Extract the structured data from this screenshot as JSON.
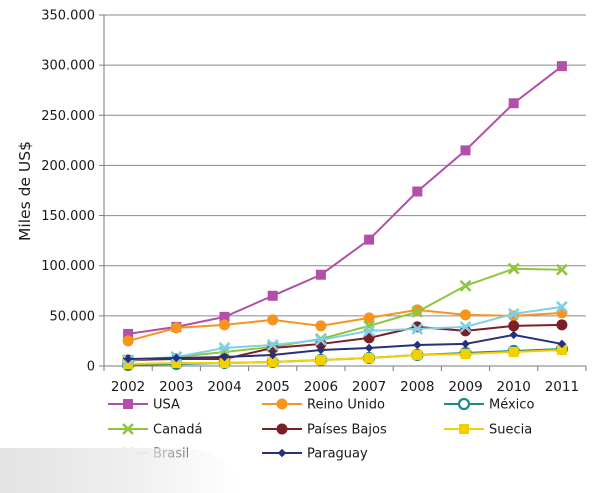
{
  "chart_data": {
    "type": "line",
    "title": "",
    "xlabel": "",
    "ylabel": "Miles de US$",
    "categories": [
      "2002",
      "2003",
      "2004",
      "2005",
      "2006",
      "2007",
      "2008",
      "2009",
      "2010",
      "2011"
    ],
    "y_ticks": [
      "0",
      "50.000",
      "100.000",
      "150.000",
      "200.000",
      "250.000",
      "300.000",
      "350.000"
    ],
    "ylim": [
      0,
      350000
    ],
    "grid": true,
    "legend_position": "bottom",
    "series": [
      {
        "name": "USA",
        "color": "#b34fa8",
        "marker": "square",
        "values": [
          32000,
          39000,
          49000,
          70000,
          91000,
          126000,
          174000,
          215000,
          262000,
          299000
        ]
      },
      {
        "name": "Reino Unido",
        "color": "#f7941d",
        "marker": "circle",
        "values": [
          25000,
          38000,
          41000,
          46000,
          40000,
          48000,
          56000,
          51000,
          50000,
          53000
        ]
      },
      {
        "name": "México",
        "color": "#1d8a88",
        "marker": "open-circle",
        "values": [
          1000,
          2000,
          3000,
          4000,
          6000,
          8000,
          11000,
          13000,
          15000,
          17000
        ]
      },
      {
        "name": "Canadá",
        "color": "#8dc63f",
        "marker": "x",
        "values": [
          5000,
          9000,
          14000,
          19000,
          27000,
          40000,
          54000,
          80000,
          97000,
          96000
        ]
      },
      {
        "name": "Países Bajos",
        "color": "#7b1f24",
        "marker": "circle",
        "values": [
          6000,
          7000,
          7000,
          18000,
          22000,
          28000,
          39000,
          35000,
          40000,
          41000
        ]
      },
      {
        "name": "Suecia",
        "color": "#f5d000",
        "marker": "square",
        "values": [
          2000,
          3000,
          3000,
          4000,
          6000,
          8000,
          11000,
          12000,
          14000,
          16000
        ]
      },
      {
        "name": "Brasil",
        "color": "#7fd0e6",
        "marker": "x",
        "values": [
          6000,
          9000,
          18000,
          21000,
          26000,
          35000,
          37000,
          39000,
          52000,
          59000
        ]
      },
      {
        "name": "Paraguay",
        "color": "#27307a",
        "marker": "diamond",
        "values": [
          7000,
          8000,
          9000,
          11000,
          16000,
          18000,
          21000,
          22000,
          31000,
          22000
        ]
      }
    ]
  }
}
